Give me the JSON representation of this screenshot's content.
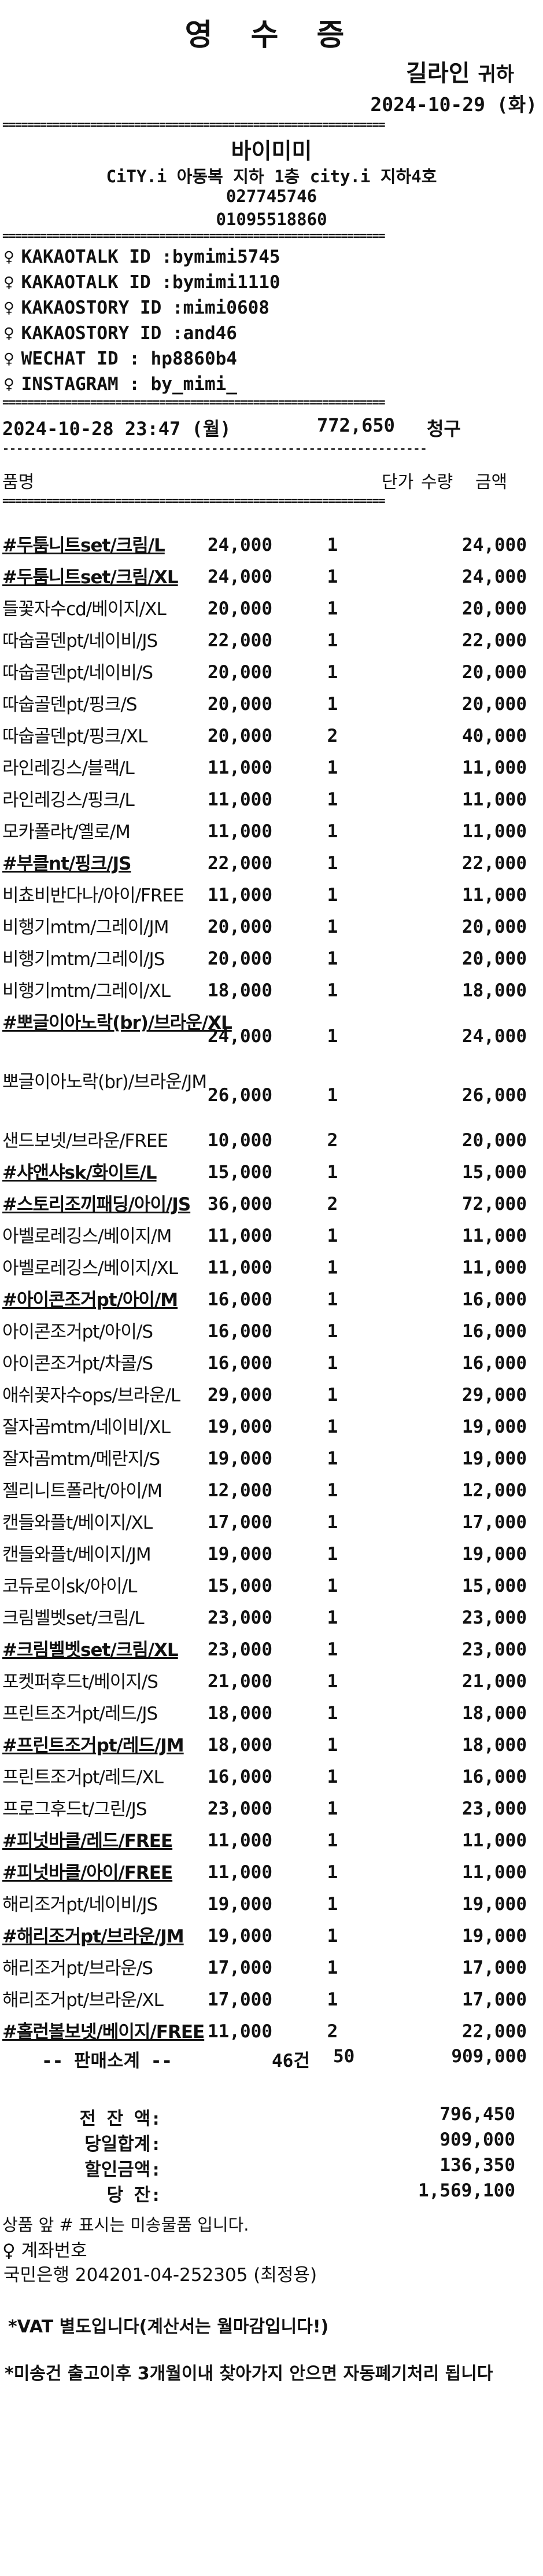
{
  "receipt": {
    "title": "영 수 증",
    "recipient": "길라인",
    "recipient_suffix": "귀하",
    "date": "2024-10-29 (화)",
    "rule_double": "=============================================================",
    "rule_dash": "-------------------------------------------------------------",
    "shop": {
      "name": "바이미미",
      "address": "CiTY.i 아동복 지하 1층 city.i 지하4호",
      "phone1": "027745746",
      "phone2": "01095518860"
    },
    "contacts": [
      {
        "icon": "pin-icon",
        "pin": "♀",
        "text": "KAKAOTALK ID :bymimi5745"
      },
      {
        "icon": "pin-icon",
        "pin": "♀",
        "text": "KAKAOTALK ID :bymimi1110"
      },
      {
        "icon": "pin-icon",
        "pin": "♀",
        "text": "KAKAOSTORY ID :mimi0608"
      },
      {
        "icon": "pin-icon",
        "pin": "♀",
        "text": "KAKAOSTORY ID :and46"
      },
      {
        "icon": "pin-icon",
        "pin": "♀",
        "text": "WECHAT ID : hp8860b4"
      },
      {
        "icon": "pin-icon",
        "pin": "♀",
        "text": "INSTAGRAM : by_mimi_"
      }
    ],
    "order": {
      "datetime": "2024-10-28 23:47 (월)",
      "amount": "772,650",
      "status": "청구"
    },
    "columns": {
      "name": "품명",
      "price": "단가",
      "qty": "수량",
      "amount": "금액"
    },
    "items": [
      {
        "name": "#두툼니트set/크림/L",
        "unsent": true,
        "price": "24,000",
        "qty": "1",
        "amount": "24,000"
      },
      {
        "name": "#두툼니트set/크림/XL",
        "unsent": true,
        "price": "24,000",
        "qty": "1",
        "amount": "24,000"
      },
      {
        "name": "들꽃자수cd/베이지/XL",
        "unsent": false,
        "price": "20,000",
        "qty": "1",
        "amount": "20,000"
      },
      {
        "name": "따숩골덴pt/네이비/JS",
        "unsent": false,
        "price": "22,000",
        "qty": "1",
        "amount": "22,000"
      },
      {
        "name": "따숩골덴pt/네이비/S",
        "unsent": false,
        "price": "20,000",
        "qty": "1",
        "amount": "20,000"
      },
      {
        "name": "따숩골덴pt/핑크/S",
        "unsent": false,
        "price": "20,000",
        "qty": "1",
        "amount": "20,000"
      },
      {
        "name": "따숩골덴pt/핑크/XL",
        "unsent": false,
        "price": "20,000",
        "qty": "2",
        "amount": "40,000"
      },
      {
        "name": "라인레깅스/블랙/L",
        "unsent": false,
        "price": "11,000",
        "qty": "1",
        "amount": "11,000"
      },
      {
        "name": "라인레깅스/핑크/L",
        "unsent": false,
        "price": "11,000",
        "qty": "1",
        "amount": "11,000"
      },
      {
        "name": "모카폴라t/옐로/M",
        "unsent": false,
        "price": "11,000",
        "qty": "1",
        "amount": "11,000"
      },
      {
        "name": "#부클nt/핑크/JS",
        "unsent": true,
        "price": "22,000",
        "qty": "1",
        "amount": "22,000"
      },
      {
        "name": "비쵸비반다나/아이/FREE",
        "unsent": false,
        "price": "11,000",
        "qty": "1",
        "amount": "11,000"
      },
      {
        "name": "비행기mtm/그레이/JM",
        "unsent": false,
        "price": "20,000",
        "qty": "1",
        "amount": "20,000"
      },
      {
        "name": "비행기mtm/그레이/JS",
        "unsent": false,
        "price": "20,000",
        "qty": "1",
        "amount": "20,000"
      },
      {
        "name": "비행기mtm/그레이/XL",
        "unsent": false,
        "price": "18,000",
        "qty": "1",
        "amount": "18,000"
      },
      {
        "name": "#뽀글이아노락(br)/브라운/XL",
        "unsent": true,
        "tall": true,
        "price": "24,000",
        "qty": "1",
        "amount": "24,000"
      },
      {
        "name": "뽀글이아노락(br)/브라운/JM",
        "unsent": false,
        "tall": true,
        "price": "26,000",
        "qty": "1",
        "amount": "26,000"
      },
      {
        "name": "샌드보넷/브라운/FREE",
        "unsent": false,
        "price": "10,000",
        "qty": "2",
        "amount": "20,000"
      },
      {
        "name": "#샤앤샤sk/화이트/L",
        "unsent": true,
        "price": "15,000",
        "qty": "1",
        "amount": "15,000"
      },
      {
        "name": "#스토리조끼패딩/아이/JS",
        "unsent": true,
        "price": "36,000",
        "qty": "2",
        "amount": "72,000"
      },
      {
        "name": "아벨로레깅스/베이지/M",
        "unsent": false,
        "price": "11,000",
        "qty": "1",
        "amount": "11,000"
      },
      {
        "name": "아벨로레깅스/베이지/XL",
        "unsent": false,
        "price": "11,000",
        "qty": "1",
        "amount": "11,000"
      },
      {
        "name": "#아이콘조거pt/아이/M",
        "unsent": true,
        "price": "16,000",
        "qty": "1",
        "amount": "16,000"
      },
      {
        "name": "아이콘조거pt/아이/S",
        "unsent": false,
        "price": "16,000",
        "qty": "1",
        "amount": "16,000"
      },
      {
        "name": "아이콘조거pt/차콜/S",
        "unsent": false,
        "price": "16,000",
        "qty": "1",
        "amount": "16,000"
      },
      {
        "name": "애쉬꽃자수ops/브라운/L",
        "unsent": false,
        "price": "29,000",
        "qty": "1",
        "amount": "29,000"
      },
      {
        "name": "잘자곰mtm/네이비/XL",
        "unsent": false,
        "price": "19,000",
        "qty": "1",
        "amount": "19,000"
      },
      {
        "name": "잘자곰mtm/메란지/S",
        "unsent": false,
        "price": "19,000",
        "qty": "1",
        "amount": "19,000"
      },
      {
        "name": "젤리니트폴라t/아이/M",
        "unsent": false,
        "price": "12,000",
        "qty": "1",
        "amount": "12,000"
      },
      {
        "name": "캔들와플t/베이지/XL",
        "unsent": false,
        "price": "17,000",
        "qty": "1",
        "amount": "17,000"
      },
      {
        "name": "캔들와플t/베이지/JM",
        "unsent": false,
        "price": "19,000",
        "qty": "1",
        "amount": "19,000"
      },
      {
        "name": "코듀로이sk/아이/L",
        "unsent": false,
        "price": "15,000",
        "qty": "1",
        "amount": "15,000"
      },
      {
        "name": "크림벨벳set/크림/L",
        "unsent": false,
        "price": "23,000",
        "qty": "1",
        "amount": "23,000"
      },
      {
        "name": "#크림벨벳set/크림/XL",
        "unsent": true,
        "price": "23,000",
        "qty": "1",
        "amount": "23,000"
      },
      {
        "name": "포켓퍼후드t/베이지/S",
        "unsent": false,
        "price": "21,000",
        "qty": "1",
        "amount": "21,000"
      },
      {
        "name": "프린트조거pt/레드/JS",
        "unsent": false,
        "price": "18,000",
        "qty": "1",
        "amount": "18,000"
      },
      {
        "name": "#프린트조거pt/레드/JM",
        "unsent": true,
        "price": "18,000",
        "qty": "1",
        "amount": "18,000"
      },
      {
        "name": "프린트조거pt/레드/XL",
        "unsent": false,
        "price": "16,000",
        "qty": "1",
        "amount": "16,000"
      },
      {
        "name": "프로그후드t/그린/JS",
        "unsent": false,
        "price": "23,000",
        "qty": "1",
        "amount": "23,000"
      },
      {
        "name": "#피넛바클/레드/FREE",
        "unsent": true,
        "price": "11,000",
        "qty": "1",
        "amount": "11,000"
      },
      {
        "name": "#피넛바클/아이/FREE",
        "unsent": true,
        "price": "11,000",
        "qty": "1",
        "amount": "11,000"
      },
      {
        "name": "해리조거pt/네이비/JS",
        "unsent": false,
        "price": "19,000",
        "qty": "1",
        "amount": "19,000"
      },
      {
        "name": "#해리조거pt/브라운/JM",
        "unsent": true,
        "price": "19,000",
        "qty": "1",
        "amount": "19,000"
      },
      {
        "name": "해리조거pt/브라운/S",
        "unsent": false,
        "price": "17,000",
        "qty": "1",
        "amount": "17,000"
      },
      {
        "name": "해리조거pt/브라운/XL",
        "unsent": false,
        "price": "17,000",
        "qty": "1",
        "amount": "17,000"
      },
      {
        "name": "#홀런볼보넷/베이지/FREE",
        "unsent": true,
        "price": "11,000",
        "qty": "2",
        "amount": "22,000"
      }
    ],
    "subtotal": {
      "label": "-- 판매소계 --",
      "kinds": "46건",
      "qty": "50",
      "amount": "909,000"
    },
    "totals": [
      {
        "label": "전 잔 액:",
        "value": "796,450"
      },
      {
        "label": "당일합계:",
        "value": "909,000"
      },
      {
        "label": "할인금액:",
        "value": "136,350"
      },
      {
        "label": "당   잔:",
        "value": "1,569,100"
      }
    ],
    "unsent_note": "상품 앞 # 표시는 미송물품 입니다.",
    "account": {
      "pin": "♀",
      "title": "계좌번호",
      "line": "국민은행 204201-04-252305 (최정용)"
    },
    "vat_note": "*VAT 별도입니다(계산서는 월마감입니다!)",
    "dispose_note": "*미송건 출고이후 3개월이내 찾아가지 안으면 자동폐기처리 됩니다"
  }
}
